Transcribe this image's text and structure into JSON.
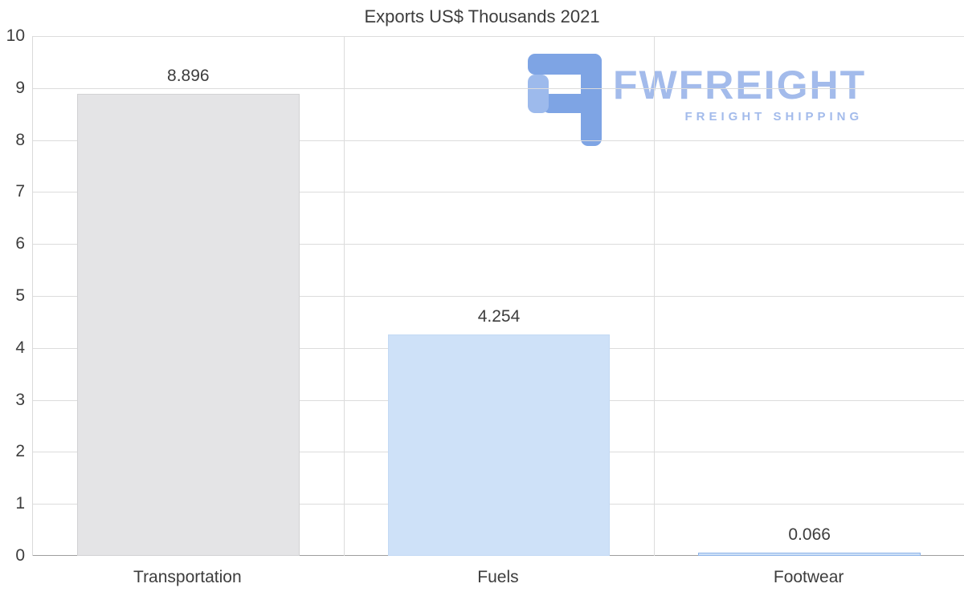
{
  "chart_data": {
    "type": "bar",
    "title": "Exports US$ Thousands 2021",
    "categories": [
      "Transportation",
      "Fuels",
      "Footwear"
    ],
    "values": [
      8.896,
      4.254,
      0.066
    ],
    "value_labels": [
      "8.896",
      "4.254",
      "0.066"
    ],
    "xlabel": "",
    "ylabel": "",
    "ylim": [
      0,
      10
    ],
    "ytick_step": 1,
    "grid": "on",
    "legend": "none",
    "bar_colors": [
      "#e4e4e6",
      "#cee1f8",
      "#cee1f8"
    ],
    "bar_borders": [
      "#d2d2d4",
      "#c3d9f4",
      "#8fb4e8"
    ]
  },
  "watermark": {
    "name": "FWFREIGHT",
    "tagline": "FREIGHT SHIPPING",
    "icon": "fwfreight-logo-icon",
    "color_icon": "#7ea4e4",
    "color_text": "#a3bbeb"
  }
}
